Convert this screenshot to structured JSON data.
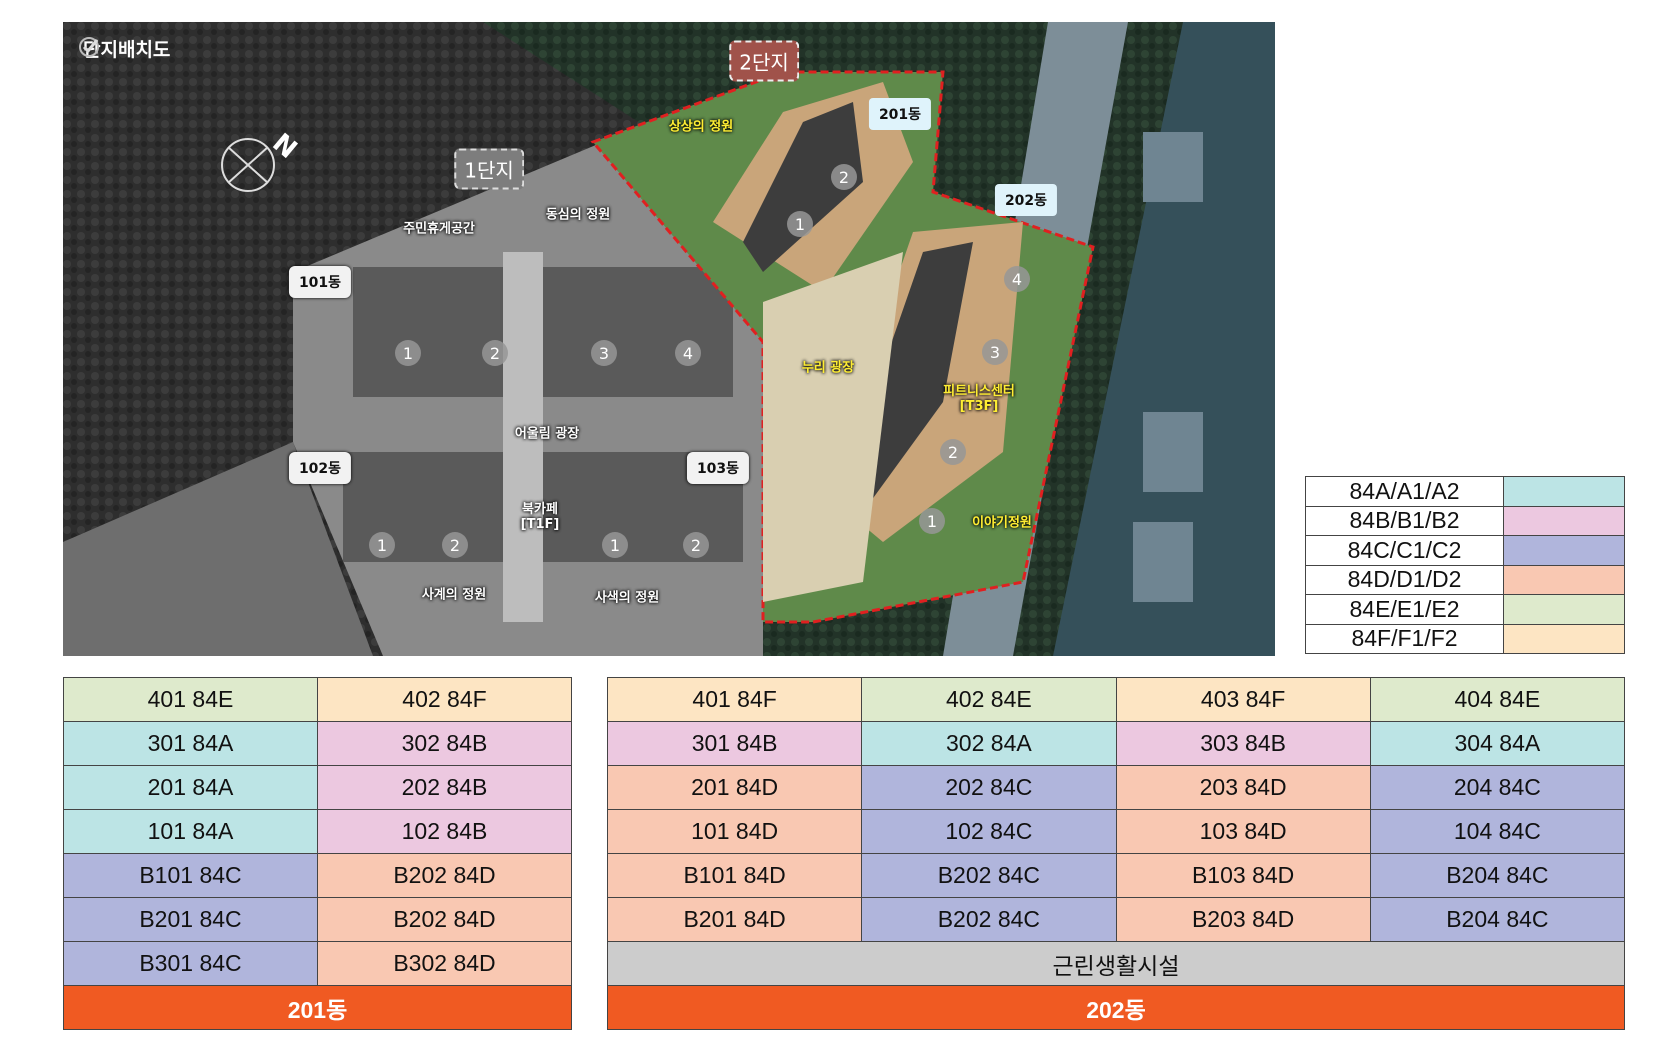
{
  "colors": {
    "A": "#bce4e5",
    "B": "#ecc8e0",
    "C": "#b0b5dc",
    "D": "#f9c8b2",
    "E": "#deeacc",
    "F": "#fde5c3",
    "shop": "#cccccc",
    "footer": "#f05a22"
  },
  "map": {
    "title": "단지배치도",
    "title_icon": "check-circle-icon",
    "compass_icon": "north-compass-icon",
    "danji1": "1단지",
    "danji2": "2단지",
    "dongs": {
      "d101": "101동",
      "d102": "102동",
      "d103": "103동",
      "d201": "201동",
      "d202": "202동"
    },
    "places": {
      "sangsang": "상상의 정원",
      "dongsim": "동심의 정원",
      "jumin": "주민휴게공간",
      "eoullim": "어울림 광장",
      "bookcafe": "북카페",
      "bookcafe_floor": "[T1F]",
      "sagye": "사계의 정원",
      "sasaek": "사색의 정원",
      "nuri": "누리 광장",
      "fitness": "피트니스센터",
      "fitness_floor": "[T3F]",
      "iyagi": "이야기정원"
    },
    "line_numbers": [
      "1",
      "2",
      "3",
      "4"
    ]
  },
  "legend": [
    {
      "label": "84A/A1/A2",
      "color": "A"
    },
    {
      "label": "84B/B1/B2",
      "color": "B"
    },
    {
      "label": "84C/C1/C2",
      "color": "C"
    },
    {
      "label": "84D/D1/D2",
      "color": "D"
    },
    {
      "label": "84E/E1/E2",
      "color": "E"
    },
    {
      "label": "84F/F1/F2",
      "color": "F"
    }
  ],
  "table201": {
    "rows": [
      [
        {
          "t": "401 84E",
          "c": "E"
        },
        {
          "t": "402 84F",
          "c": "F"
        }
      ],
      [
        {
          "t": "301 84A",
          "c": "A"
        },
        {
          "t": "302 84B",
          "c": "B"
        }
      ],
      [
        {
          "t": "201 84A",
          "c": "A"
        },
        {
          "t": "202 84B",
          "c": "B"
        }
      ],
      [
        {
          "t": "101 84A",
          "c": "A"
        },
        {
          "t": "102 84B",
          "c": "B"
        }
      ],
      [
        {
          "t": "B101 84C",
          "c": "C"
        },
        {
          "t": "B202 84D",
          "c": "D"
        }
      ],
      [
        {
          "t": "B201 84C",
          "c": "C"
        },
        {
          "t": "B202 84D",
          "c": "D"
        }
      ],
      [
        {
          "t": "B301 84C",
          "c": "C"
        },
        {
          "t": "B302 84D",
          "c": "D"
        }
      ]
    ],
    "footer": "201동"
  },
  "table202": {
    "rows": [
      [
        {
          "t": "401 84F",
          "c": "F"
        },
        {
          "t": "402 84E",
          "c": "E"
        },
        {
          "t": "403 84F",
          "c": "F"
        },
        {
          "t": "404 84E",
          "c": "E"
        }
      ],
      [
        {
          "t": "301 84B",
          "c": "B"
        },
        {
          "t": "302 84A",
          "c": "A"
        },
        {
          "t": "303 84B",
          "c": "B"
        },
        {
          "t": "304 84A",
          "c": "A"
        }
      ],
      [
        {
          "t": "201 84D",
          "c": "D"
        },
        {
          "t": "202 84C",
          "c": "C"
        },
        {
          "t": "203 84D",
          "c": "D"
        },
        {
          "t": "204 84C",
          "c": "C"
        }
      ],
      [
        {
          "t": "101 84D",
          "c": "D"
        },
        {
          "t": "102 84C",
          "c": "C"
        },
        {
          "t": "103 84D",
          "c": "D"
        },
        {
          "t": "104 84C",
          "c": "C"
        }
      ],
      [
        {
          "t": "B101 84D",
          "c": "D"
        },
        {
          "t": "B202 84C",
          "c": "C"
        },
        {
          "t": "B103 84D",
          "c": "D"
        },
        {
          "t": "B204 84C",
          "c": "C"
        }
      ],
      [
        {
          "t": "B201 84D",
          "c": "D"
        },
        {
          "t": "B202 84C",
          "c": "C"
        },
        {
          "t": "B203 84D",
          "c": "D"
        },
        {
          "t": "B204 84C",
          "c": "C"
        }
      ]
    ],
    "shop": "근린생활시설",
    "footer": "202동"
  }
}
